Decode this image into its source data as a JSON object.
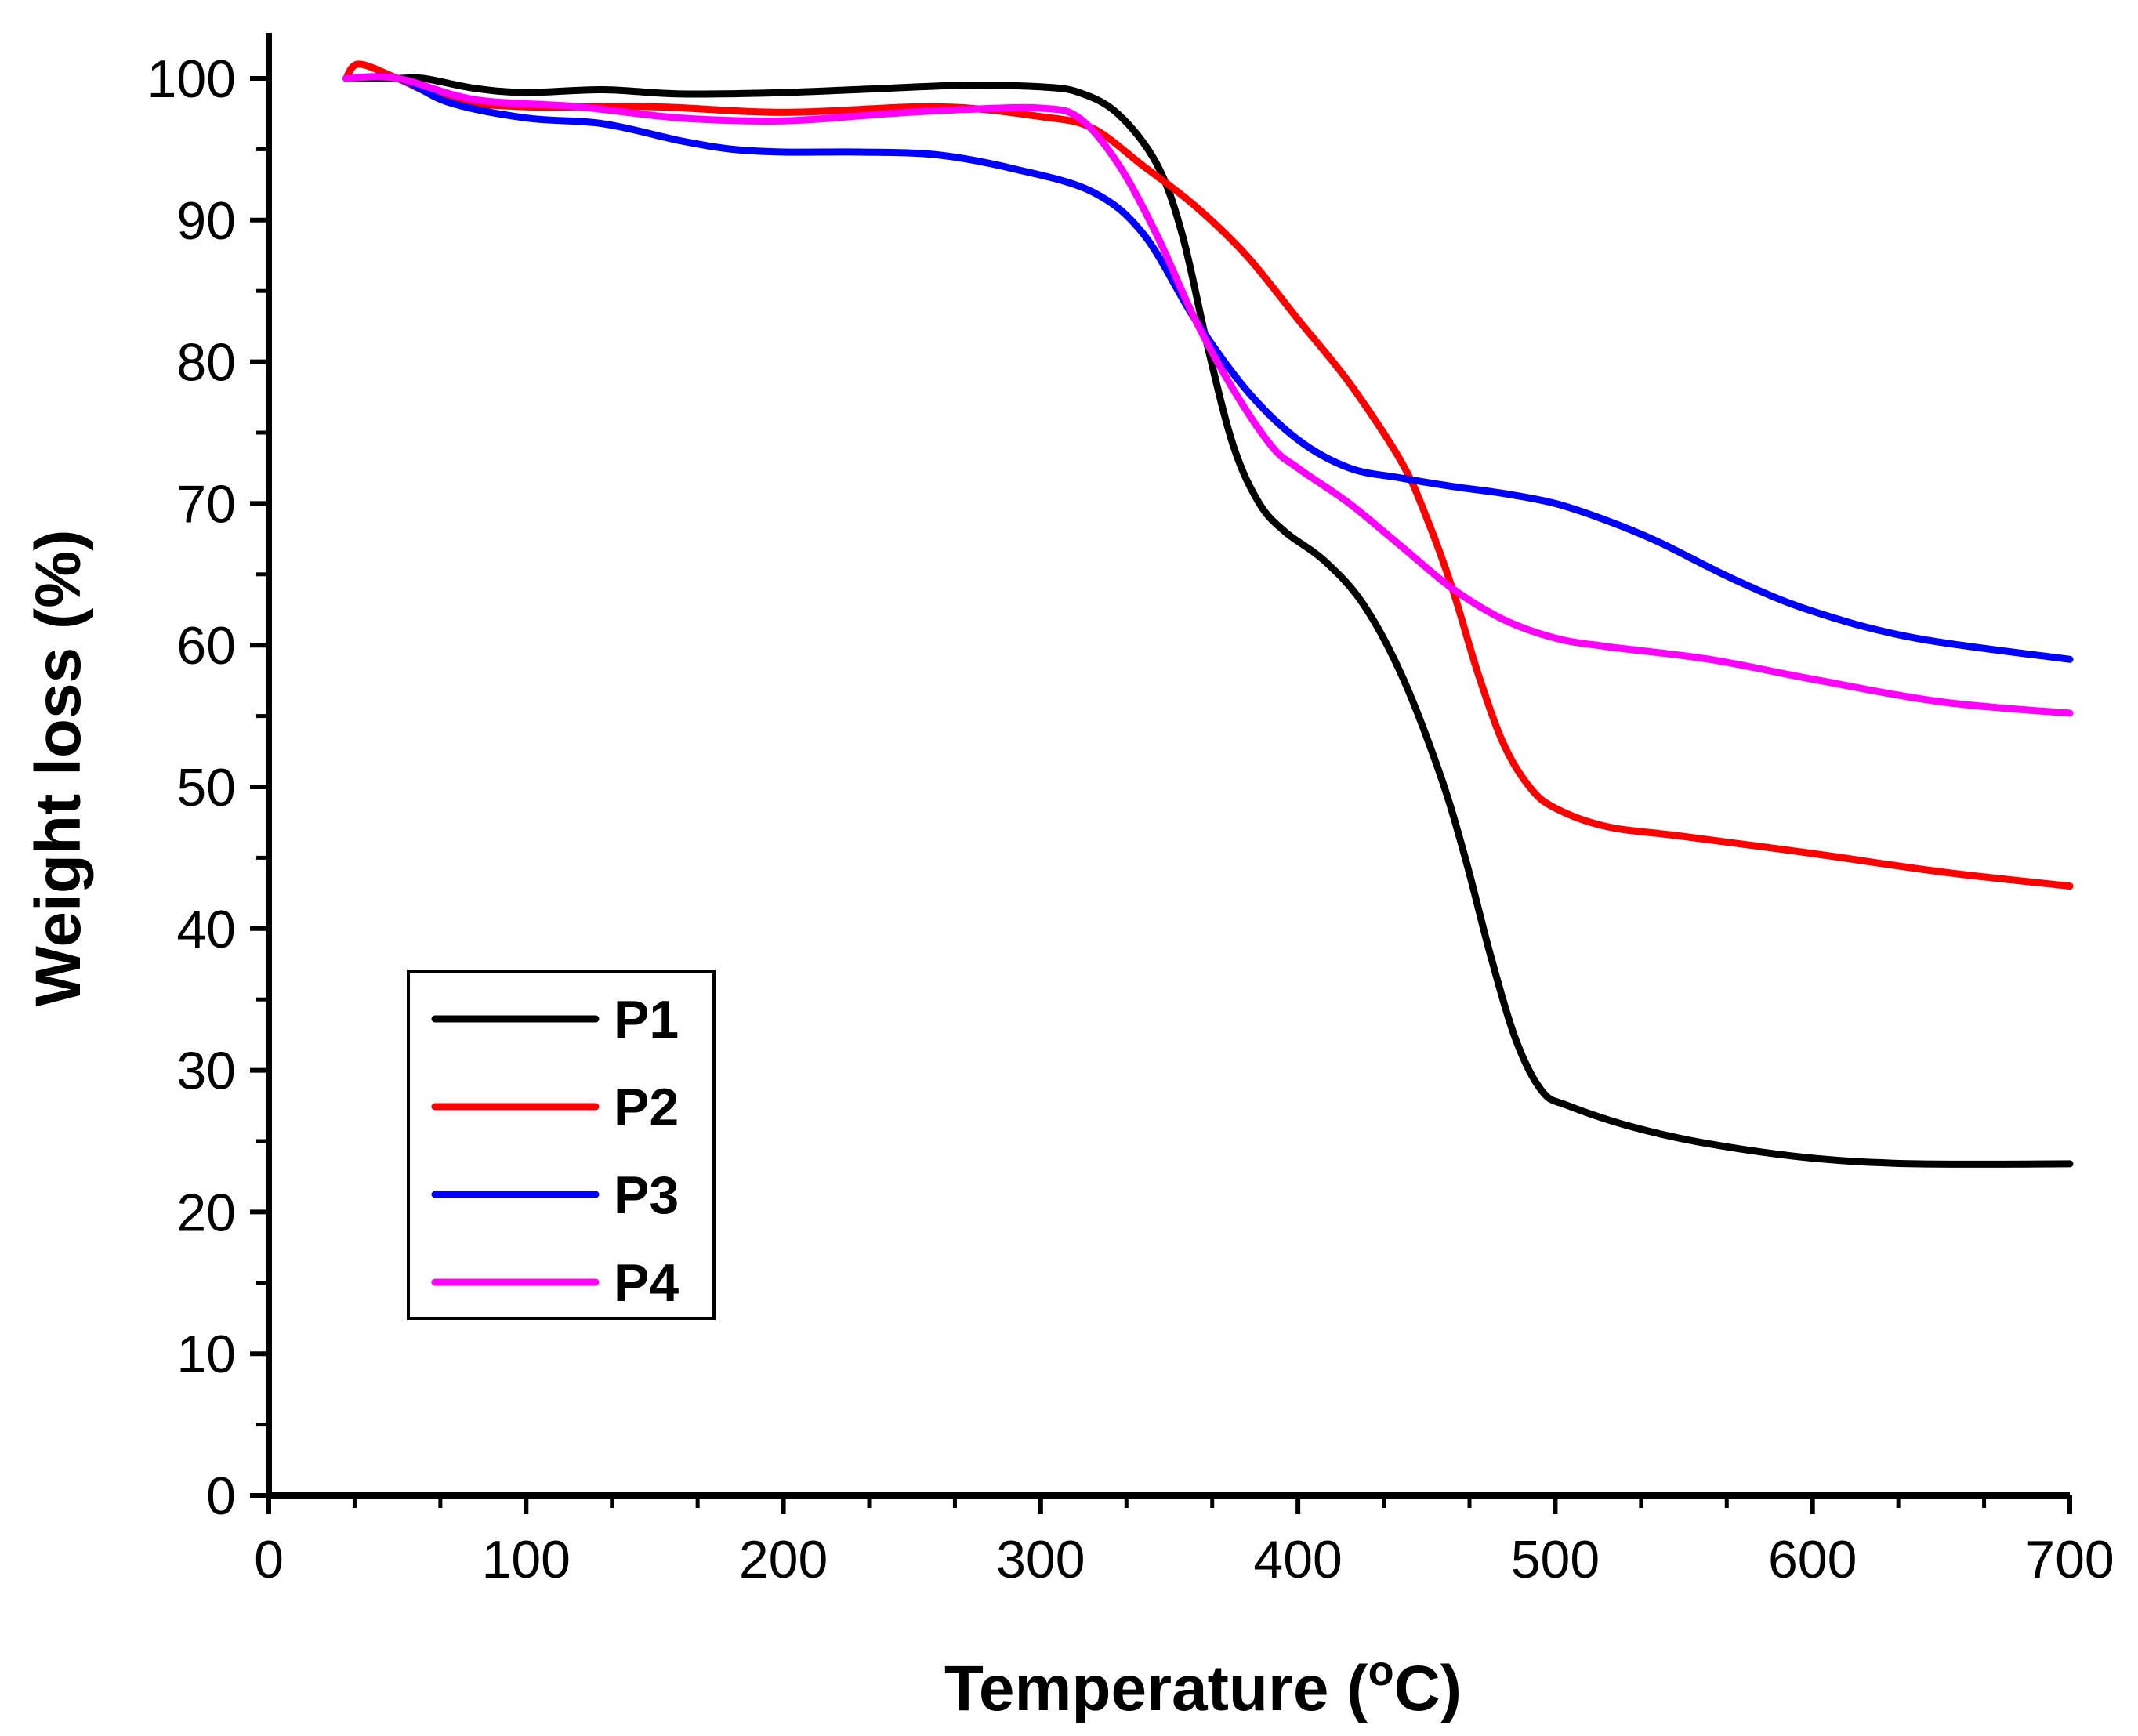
{
  "chart_data": {
    "type": "line",
    "title": "",
    "xlabel_main": "Temperature (",
    "xlabel_sup": "o",
    "xlabel_unit": "C)",
    "ylabel": "Weight loss (%)",
    "xlim": [
      0,
      700
    ],
    "ylim": [
      0,
      100
    ],
    "xticks": [
      0,
      100,
      200,
      300,
      400,
      500,
      600,
      700
    ],
    "yticks": [
      0,
      10,
      20,
      30,
      40,
      50,
      60,
      70,
      80,
      90,
      100
    ],
    "grid": false,
    "legend_position": "lower-left",
    "series": [
      {
        "name": "P1",
        "color": "#000000",
        "x": [
          30,
          50,
          60,
          80,
          100,
          130,
          160,
          200,
          240,
          270,
          300,
          315,
          330,
          345,
          355,
          365,
          375,
          385,
          395,
          410,
          425,
          440,
          455,
          465,
          475,
          485,
          495,
          505,
          530,
          560,
          600,
          640,
          700
        ],
        "y": [
          100,
          100,
          100,
          99.3,
          99,
          99.2,
          98.9,
          99,
          99.3,
          99.5,
          99.4,
          99,
          97.5,
          94,
          89,
          81,
          74,
          70,
          68,
          66,
          63,
          58,
          51,
          45,
          38,
          32,
          28.5,
          27.5,
          26,
          24.8,
          23.8,
          23.4,
          23.4
        ]
      },
      {
        "name": "P2",
        "color": "#ff0000",
        "x": [
          30,
          35,
          50,
          70,
          100,
          150,
          200,
          260,
          300,
          320,
          340,
          360,
          380,
          400,
          420,
          440,
          450,
          460,
          470,
          480,
          490,
          500,
          520,
          550,
          600,
          650,
          700
        ],
        "y": [
          100,
          101,
          100,
          98.5,
          98,
          98,
          97.6,
          98,
          97.3,
          96.5,
          93.8,
          91,
          87.5,
          83,
          78.5,
          73,
          69,
          64,
          58,
          53,
          50,
          48.5,
          47.2,
          46.5,
          45.3,
          44,
          43
        ]
      },
      {
        "name": "P3",
        "color": "#0000ff",
        "x": [
          30,
          50,
          70,
          100,
          130,
          160,
          180,
          200,
          230,
          260,
          290,
          320,
          340,
          360,
          380,
          400,
          420,
          440,
          460,
          480,
          500,
          520,
          540,
          570,
          600,
          640,
          700
        ],
        "y": [
          100,
          100,
          98.3,
          97.2,
          96.8,
          95.6,
          95,
          94.8,
          94.8,
          94.6,
          93.6,
          92,
          89,
          83,
          78,
          74.5,
          72.5,
          71.8,
          71.2,
          70.7,
          70,
          68.8,
          67.3,
          64.6,
          62.4,
          60.5,
          59
        ]
      },
      {
        "name": "P4",
        "color": "#ff00ff",
        "x": [
          30,
          50,
          80,
          120,
          160,
          200,
          240,
          270,
          300,
          315,
          330,
          345,
          360,
          375,
          390,
          400,
          420,
          440,
          460,
          480,
          500,
          520,
          560,
          600,
          650,
          700
        ],
        "y": [
          100,
          100,
          98.5,
          98,
          97.2,
          97,
          97.5,
          97.8,
          97.9,
          97.2,
          94,
          89,
          83,
          78,
          74,
          72.5,
          70,
          67,
          64,
          61.8,
          60.5,
          59.9,
          59,
          57.6,
          56,
          55.2
        ]
      }
    ]
  }
}
